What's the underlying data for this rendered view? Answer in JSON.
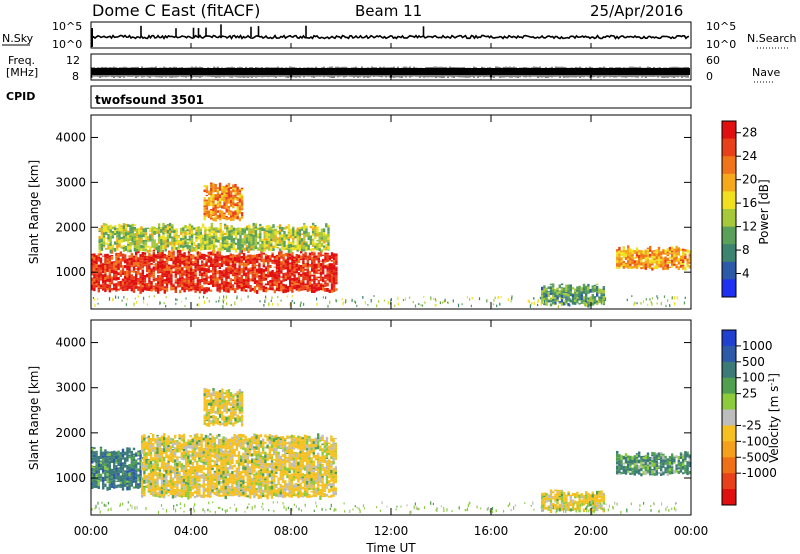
{
  "header": {
    "station": "Dome C East (fitACF)",
    "beam": "Beam 11",
    "date": "25/Apr/2016"
  },
  "summary_panels": {
    "nsky": {
      "label": "N.Sky",
      "tick_top": "10^5",
      "tick_bottom": "10^0",
      "right_label": "N.Search",
      "right_tick_top": "10^5",
      "right_tick_bottom": "10^0"
    },
    "freq": {
      "label_line1": "Freq.",
      "label_line2": "[MHz]",
      "tick_top": "12",
      "tick_bottom": "8",
      "right_label": "Nave",
      "right_tick_top": "60",
      "right_tick_bottom": "0"
    },
    "cpid": {
      "label": "CPID",
      "text": "twofsound 3501"
    }
  },
  "chart_data": [
    {
      "type": "heatmap",
      "title": "",
      "quantity": "Power",
      "xlabel": "",
      "ylabel": "Slant Range [km]",
      "x_ticks": [
        "00:00",
        "04:00",
        "08:00",
        "12:00",
        "16:00",
        "20:00",
        "00:00"
      ],
      "x_range_hours": [
        0,
        24
      ],
      "ylim": [
        180,
        4500
      ],
      "y_ticks": [
        1000,
        2000,
        3000,
        4000
      ],
      "colorbar": {
        "label": "Power [dB]",
        "ticks": [
          "4",
          "8",
          "12",
          "16",
          "20",
          "24",
          "28"
        ],
        "range": [
          0,
          30
        ],
        "colors": [
          "#1f30f0",
          "#2c59a8",
          "#3d8470",
          "#5aa05a",
          "#a6c83a",
          "#f0e020",
          "#f5a81a",
          "#f0741a",
          "#e84018",
          "#e01010"
        ]
      },
      "echo_regions": [
        {
          "t_start_h": 0.0,
          "t_end_h": 9.8,
          "range_km": [
            600,
            1500
          ],
          "value_db": 27
        },
        {
          "t_start_h": 0.3,
          "t_end_h": 9.5,
          "range_km": [
            1500,
            2100
          ],
          "value_db": 14
        },
        {
          "t_start_h": 4.5,
          "t_end_h": 6.0,
          "range_km": [
            2200,
            3000
          ],
          "value_db": 22
        },
        {
          "t_start_h": 18.0,
          "t_end_h": 20.5,
          "range_km": [
            300,
            750
          ],
          "value_db": 10
        },
        {
          "t_start_h": 21.0,
          "t_end_h": 24.0,
          "range_km": [
            1100,
            1600
          ],
          "value_db": 20
        }
      ]
    },
    {
      "type": "heatmap",
      "title": "",
      "quantity": "Velocity",
      "xlabel": "Time UT",
      "ylabel": "Slant Range [km]",
      "x_ticks": [
        "00:00",
        "04:00",
        "08:00",
        "12:00",
        "16:00",
        "20:00",
        "00:00"
      ],
      "x_range_hours": [
        0,
        24
      ],
      "ylim": [
        180,
        4500
      ],
      "y_ticks": [
        1000,
        2000,
        3000,
        4000
      ],
      "colorbar": {
        "label": "Velocity [m s^-1]",
        "ticks": [
          "1000",
          "500",
          "100",
          "25",
          "-25",
          "-100",
          "-500",
          "-1000"
        ],
        "colors": [
          "#2040d0",
          "#2c5aa8",
          "#3c7a78",
          "#50a050",
          "#8ccc3c",
          "#bdbdbd",
          "#f5c020",
          "#f5a01a",
          "#f07018",
          "#e84018",
          "#e01010"
        ]
      },
      "echo_regions": [
        {
          "t_start_h": 0.0,
          "t_end_h": 2.0,
          "range_km": [
            800,
            1700
          ],
          "value_ms": 300
        },
        {
          "t_start_h": 2.0,
          "t_end_h": 9.8,
          "range_km": [
            600,
            2000
          ],
          "value_ms": -150
        },
        {
          "t_start_h": 4.5,
          "t_end_h": 6.0,
          "range_km": [
            2200,
            3000
          ],
          "value_ms": -150
        },
        {
          "t_start_h": 18.0,
          "t_end_h": 20.5,
          "range_km": [
            300,
            750
          ],
          "value_ms": -150
        },
        {
          "t_start_h": 21.0,
          "t_end_h": 24.0,
          "range_km": [
            1100,
            1600
          ],
          "value_ms": 100
        }
      ]
    }
  ]
}
